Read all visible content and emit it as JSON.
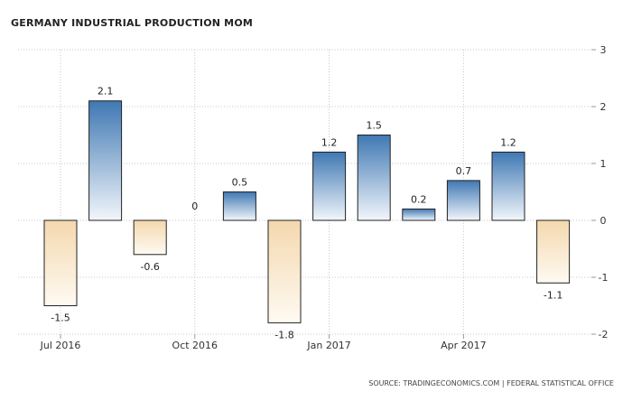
{
  "chart_data": {
    "type": "bar",
    "title": "GERMANY INDUSTRIAL PRODUCTION MOM",
    "source": "SOURCE: TRADINGECONOMICS.COM | FEDERAL STATISTICAL OFFICE",
    "values": [
      -1.5,
      2.1,
      -0.6,
      0,
      0.5,
      -1.8,
      1.2,
      1.5,
      0.2,
      0.7,
      1.2,
      -1.1
    ],
    "value_labels": [
      "-1.5",
      "2.1",
      "-0.6",
      "0",
      "0.5",
      "-1.8",
      "1.2",
      "1.5",
      "0.2",
      "0.7",
      "1.2",
      "-1.1"
    ],
    "x_tick_labels": [
      {
        "bar_index": 0,
        "label": "Jul 2016"
      },
      {
        "bar_index": 3,
        "label": "Oct 2016"
      },
      {
        "bar_index": 6,
        "label": "Jan 2017"
      },
      {
        "bar_index": 9,
        "label": "Apr 2017"
      }
    ],
    "y_ticks": [
      3,
      2,
      1,
      0,
      -1,
      -2
    ],
    "ylim": [
      -2,
      3
    ],
    "y_axis_position": "right",
    "grid": true,
    "colors": {
      "positive_top": "#3f78b3",
      "positive_bottom": "#f2f6fb",
      "negative_top": "#f4d8ae",
      "negative_bottom": "#fefaf2",
      "bar_border": "#222222",
      "grid": "#c8c8c8"
    }
  }
}
